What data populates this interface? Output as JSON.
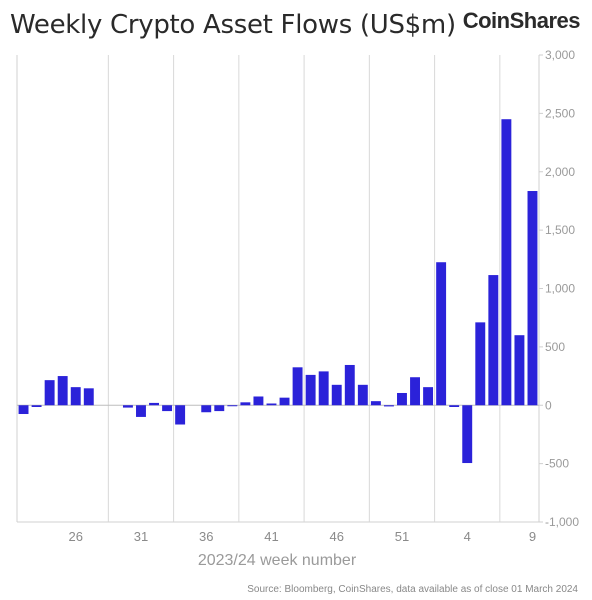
{
  "title": "Weekly Crypto Asset Flows (US$m)",
  "logo": "CoinShares",
  "source": "Source: Bloomberg, CoinShares, data available as of close 01 March 2024",
  "chart_data": {
    "type": "bar",
    "title": "Weekly Crypto Asset Flows (US$m)",
    "xlabel": "2023/24 week number",
    "ylabel": "",
    "ylim": [
      -1000,
      3000
    ],
    "y_axis_position": "right",
    "grid": "vertical lines every 5 weeks",
    "bar_color": "#2b22d9",
    "yticks": [
      "3,000",
      "2,500",
      "2,000",
      "1,500",
      "1,000",
      "500",
      "0",
      "-500",
      "-1,000"
    ],
    "ytick_values": [
      3000,
      2500,
      2000,
      1500,
      1000,
      500,
      0,
      -500,
      -1000
    ],
    "categories": [
      "22",
      "23",
      "24",
      "25",
      "26",
      "27",
      "28",
      "29",
      "30",
      "31",
      "32",
      "33",
      "34",
      "35",
      "36",
      "37",
      "38",
      "39",
      "40",
      "41",
      "42",
      "43",
      "44",
      "45",
      "46",
      "47",
      "48",
      "49",
      "50",
      "51",
      "52",
      "1",
      "2",
      "3",
      "4",
      "5",
      "6",
      "7",
      "8",
      "9"
    ],
    "xtick_labels": [
      "26",
      "31",
      "36",
      "41",
      "46",
      "51",
      "4",
      "9"
    ],
    "values": [
      -75,
      -15,
      215,
      250,
      155,
      145,
      0,
      0,
      -20,
      -100,
      20,
      -50,
      -165,
      0,
      -60,
      -50,
      -5,
      25,
      75,
      15,
      65,
      325,
      260,
      290,
      175,
      345,
      175,
      35,
      -10,
      105,
      240,
      155,
      1225,
      -15,
      -495,
      710,
      1115,
      2450,
      600,
      1835
    ]
  }
}
